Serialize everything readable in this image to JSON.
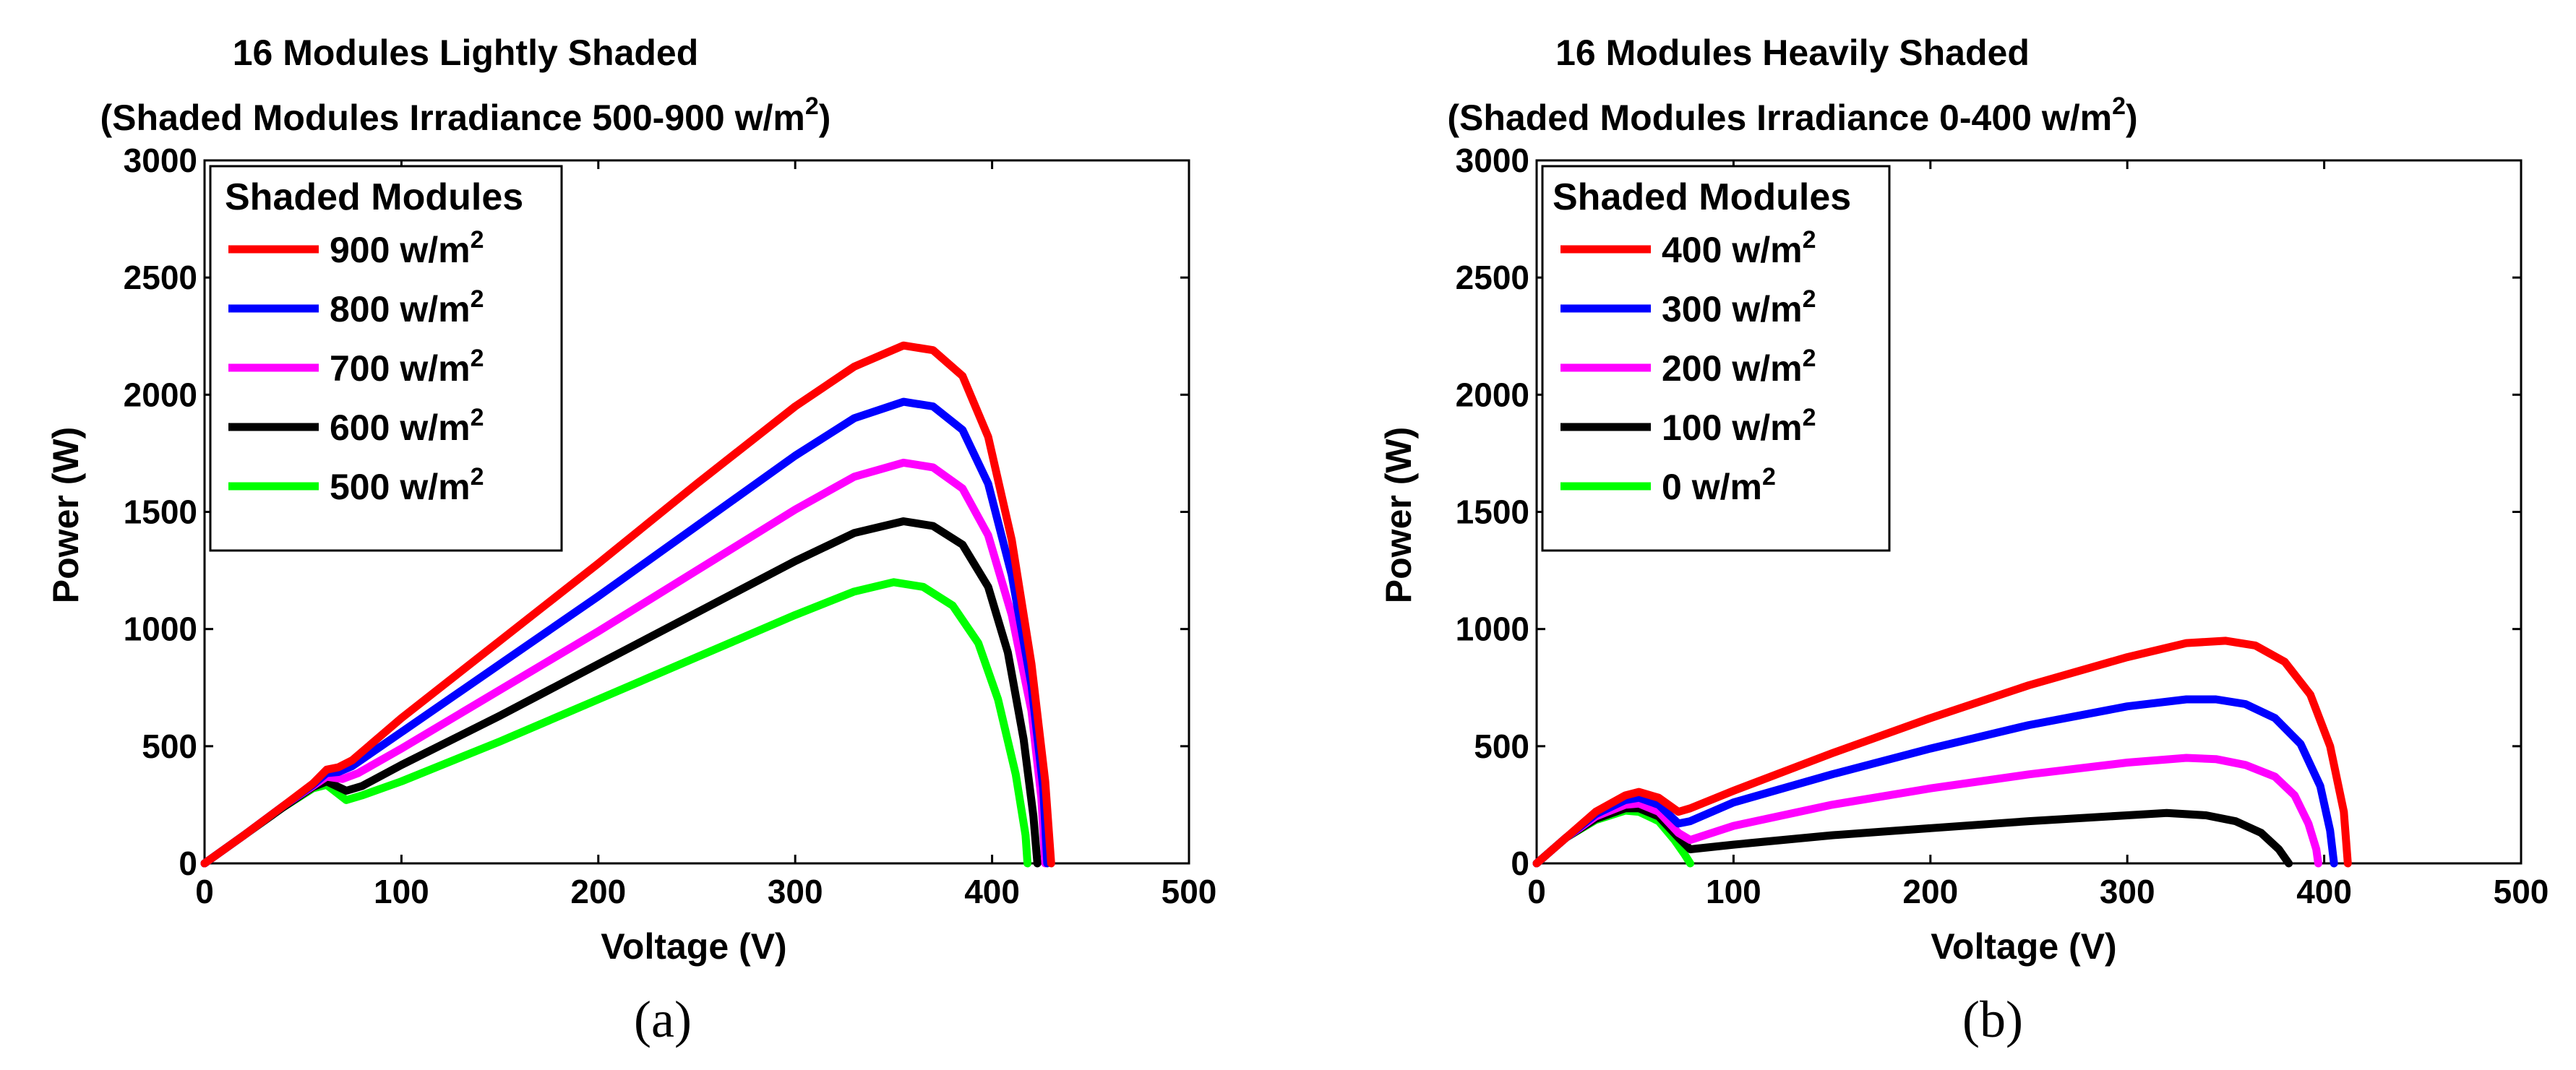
{
  "chart_data": [
    {
      "type": "line",
      "panel_label": "(a)",
      "title_line1": "16 Modules Lightly Shaded",
      "title_line2_prefix": "(Shaded Modules Irradiance 500-900 w/m",
      "title_sup": "2",
      "title_line2_suffix": ")",
      "xlabel": "Voltage (V)",
      "ylabel": "Power (W)",
      "xlim": [
        0,
        500
      ],
      "ylim": [
        0,
        3000
      ],
      "xticks": [
        "0",
        "100",
        "200",
        "300",
        "400",
        "500"
      ],
      "yticks": [
        "0",
        "500",
        "1000",
        "1500",
        "2000",
        "2500",
        "3000"
      ],
      "legend_title": "Shaded Modules",
      "legend_location": "top-left",
      "series": [
        {
          "name": "900 w/m",
          "sup": "2",
          "color": "#ff0000",
          "points": [
            [
              0,
              0
            ],
            [
              20,
              120
            ],
            [
              40,
              245
            ],
            [
              55,
              340
            ],
            [
              62,
              400
            ],
            [
              68,
              410
            ],
            [
              75,
              440
            ],
            [
              100,
              620
            ],
            [
              150,
              950
            ],
            [
              200,
              1280
            ],
            [
              250,
              1620
            ],
            [
              300,
              1950
            ],
            [
              330,
              2120
            ],
            [
              355,
              2210
            ],
            [
              370,
              2190
            ],
            [
              385,
              2080
            ],
            [
              398,
              1820
            ],
            [
              410,
              1380
            ],
            [
              420,
              850
            ],
            [
              427,
              350
            ],
            [
              430,
              0
            ]
          ]
        },
        {
          "name": "800 w/m",
          "sup": "2",
          "color": "#0000ff",
          "points": [
            [
              0,
              0
            ],
            [
              20,
              120
            ],
            [
              40,
              245
            ],
            [
              55,
              335
            ],
            [
              62,
              385
            ],
            [
              68,
              390
            ],
            [
              75,
              415
            ],
            [
              100,
              560
            ],
            [
              150,
              850
            ],
            [
              200,
              1140
            ],
            [
              250,
              1440
            ],
            [
              300,
              1740
            ],
            [
              330,
              1900
            ],
            [
              355,
              1970
            ],
            [
              370,
              1950
            ],
            [
              385,
              1850
            ],
            [
              398,
              1620
            ],
            [
              410,
              1230
            ],
            [
              420,
              760
            ],
            [
              426,
              320
            ],
            [
              428,
              0
            ]
          ]
        },
        {
          "name": "700 w/m",
          "sup": "2",
          "color": "#ff00ff",
          "points": [
            [
              0,
              0
            ],
            [
              20,
              120
            ],
            [
              40,
              245
            ],
            [
              55,
              330
            ],
            [
              62,
              370
            ],
            [
              70,
              360
            ],
            [
              78,
              385
            ],
            [
              100,
              490
            ],
            [
              150,
              740
            ],
            [
              200,
              990
            ],
            [
              250,
              1250
            ],
            [
              300,
              1510
            ],
            [
              330,
              1650
            ],
            [
              355,
              1710
            ],
            [
              370,
              1690
            ],
            [
              385,
              1600
            ],
            [
              398,
              1400
            ],
            [
              410,
              1060
            ],
            [
              420,
              650
            ],
            [
              425,
              280
            ],
            [
              427,
              0
            ]
          ]
        },
        {
          "name": "600 w/m",
          "sup": "2",
          "color": "#000000",
          "points": [
            [
              0,
              0
            ],
            [
              20,
              120
            ],
            [
              40,
              240
            ],
            [
              55,
              325
            ],
            [
              62,
              350
            ],
            [
              72,
              310
            ],
            [
              80,
              330
            ],
            [
              100,
              420
            ],
            [
              150,
              630
            ],
            [
              200,
              850
            ],
            [
              250,
              1070
            ],
            [
              300,
              1290
            ],
            [
              330,
              1410
            ],
            [
              355,
              1460
            ],
            [
              370,
              1440
            ],
            [
              385,
              1360
            ],
            [
              398,
              1180
            ],
            [
              408,
              900
            ],
            [
              416,
              530
            ],
            [
              421,
              200
            ],
            [
              423,
              0
            ]
          ]
        },
        {
          "name": "500 w/m",
          "sup": "2",
          "color": "#00ff00",
          "points": [
            [
              0,
              0
            ],
            [
              20,
              120
            ],
            [
              40,
              240
            ],
            [
              55,
              320
            ],
            [
              62,
              335
            ],
            [
              72,
              270
            ],
            [
              80,
              290
            ],
            [
              100,
              350
            ],
            [
              150,
              520
            ],
            [
              200,
              700
            ],
            [
              250,
              880
            ],
            [
              300,
              1060
            ],
            [
              330,
              1160
            ],
            [
              350,
              1200
            ],
            [
              365,
              1180
            ],
            [
              380,
              1100
            ],
            [
              393,
              940
            ],
            [
              403,
              700
            ],
            [
              412,
              380
            ],
            [
              417,
              120
            ],
            [
              418,
              0
            ]
          ]
        }
      ]
    },
    {
      "type": "line",
      "panel_label": "(b)",
      "title_line1": "16 Modules Heavily Shaded",
      "title_line2_prefix": "(Shaded Modules Irradiance 0-400 w/m",
      "title_sup": "2",
      "title_line2_suffix": ")",
      "xlabel": "Voltage (V)",
      "ylabel": "Power (W)",
      "xlim": [
        0,
        500
      ],
      "ylim": [
        0,
        3000
      ],
      "xticks": [
        "0",
        "100",
        "200",
        "300",
        "400",
        "500"
      ],
      "yticks": [
        "0",
        "500",
        "1000",
        "1500",
        "2000",
        "2500",
        "3000"
      ],
      "legend_title": "Shaded Modules",
      "legend_location": "top-left",
      "series": [
        {
          "name": "400 w/m",
          "sup": "2",
          "color": "#ff0000",
          "points": [
            [
              0,
              0
            ],
            [
              15,
              110
            ],
            [
              30,
              220
            ],
            [
              45,
              290
            ],
            [
              52,
              305
            ],
            [
              62,
              280
            ],
            [
              72,
              220
            ],
            [
              78,
              235
            ],
            [
              100,
              310
            ],
            [
              150,
              470
            ],
            [
              200,
              620
            ],
            [
              250,
              760
            ],
            [
              300,
              880
            ],
            [
              330,
              940
            ],
            [
              350,
              950
            ],
            [
              365,
              930
            ],
            [
              380,
              860
            ],
            [
              393,
              720
            ],
            [
              403,
              500
            ],
            [
              410,
              220
            ],
            [
              412,
              0
            ]
          ]
        },
        {
          "name": "300 w/m",
          "sup": "2",
          "color": "#0000ff",
          "points": [
            [
              0,
              0
            ],
            [
              15,
              110
            ],
            [
              30,
              210
            ],
            [
              45,
              270
            ],
            [
              52,
              280
            ],
            [
              62,
              250
            ],
            [
              72,
              170
            ],
            [
              78,
              180
            ],
            [
              100,
              260
            ],
            [
              150,
              380
            ],
            [
              200,
              490
            ],
            [
              250,
              590
            ],
            [
              300,
              670
            ],
            [
              330,
              700
            ],
            [
              345,
              700
            ],
            [
              360,
              680
            ],
            [
              375,
              620
            ],
            [
              388,
              510
            ],
            [
              398,
              330
            ],
            [
              403,
              140
            ],
            [
              405,
              0
            ]
          ]
        },
        {
          "name": "200 w/m",
          "sup": "2",
          "color": "#ff00ff",
          "points": [
            [
              0,
              0
            ],
            [
              15,
              110
            ],
            [
              30,
              200
            ],
            [
              45,
              250
            ],
            [
              52,
              255
            ],
            [
              62,
              220
            ],
            [
              72,
              130
            ],
            [
              78,
              100
            ],
            [
              100,
              160
            ],
            [
              150,
              250
            ],
            [
              200,
              320
            ],
            [
              250,
              380
            ],
            [
              300,
              430
            ],
            [
              330,
              450
            ],
            [
              345,
              445
            ],
            [
              360,
              420
            ],
            [
              375,
              370
            ],
            [
              385,
              290
            ],
            [
              392,
              170
            ],
            [
              396,
              60
            ],
            [
              397,
              0
            ]
          ]
        },
        {
          "name": "100 w/m",
          "sup": "2",
          "color": "#000000",
          "points": [
            [
              0,
              0
            ],
            [
              15,
              110
            ],
            [
              30,
              190
            ],
            [
              45,
              235
            ],
            [
              52,
              235
            ],
            [
              62,
              200
            ],
            [
              72,
              110
            ],
            [
              78,
              60
            ],
            [
              100,
              80
            ],
            [
              150,
              120
            ],
            [
              200,
              150
            ],
            [
              250,
              180
            ],
            [
              300,
              205
            ],
            [
              320,
              215
            ],
            [
              340,
              205
            ],
            [
              355,
              180
            ],
            [
              368,
              130
            ],
            [
              377,
              60
            ],
            [
              382,
              0
            ]
          ]
        },
        {
          "name": "0 w/m",
          "sup": "2",
          "color": "#00ff00",
          "points": [
            [
              0,
              0
            ],
            [
              15,
              110
            ],
            [
              30,
              185
            ],
            [
              45,
              225
            ],
            [
              52,
              220
            ],
            [
              62,
              180
            ],
            [
              70,
              100
            ],
            [
              75,
              40
            ],
            [
              78,
              0
            ]
          ]
        }
      ]
    }
  ]
}
